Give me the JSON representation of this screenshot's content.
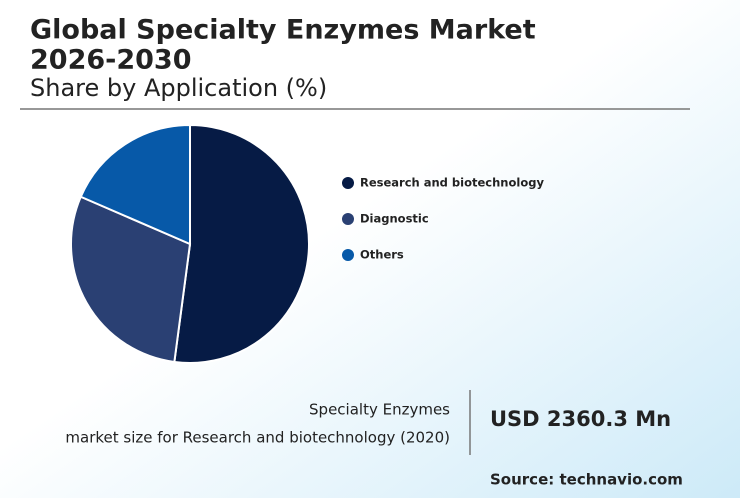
{
  "chart_data": {
    "type": "pie",
    "title_lines": [
      "Global Specialty Enzymes Market",
      "2026-2030"
    ],
    "subtitle": "Share by Application (%)",
    "categories": [
      "Research and biotechnology",
      "Diagnostic",
      "Others"
    ],
    "values": [
      52.1,
      29.4,
      18.5
    ],
    "colors": [
      "#061b45",
      "#2a4073",
      "#0759a8"
    ],
    "callout_lines": [
      "Specialty Enzymes",
      "market size for Research and biotechnology (2020)"
    ],
    "callout_value": "USD 2360.3 Mn",
    "source": "Source: technavio.com"
  }
}
